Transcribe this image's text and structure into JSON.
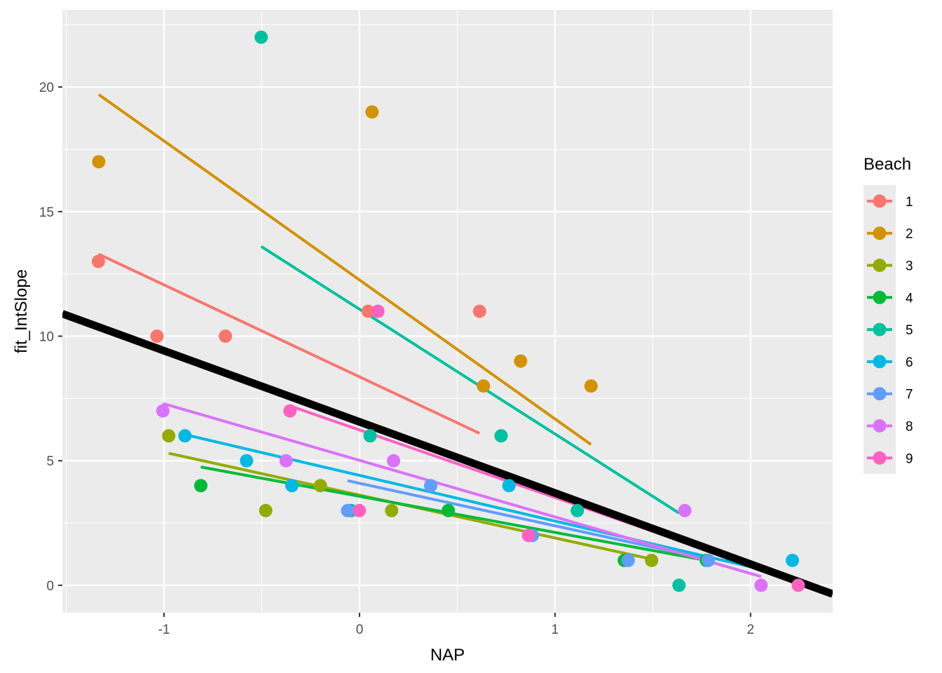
{
  "chart_data": {
    "type": "scatter",
    "title": "",
    "xlabel": "NAP",
    "ylabel": "fit_IntSlope",
    "xlim": [
      -1.52,
      2.42
    ],
    "ylim": [
      -1.1,
      23.1
    ],
    "x_ticks": [
      -1,
      0,
      1,
      2
    ],
    "x_tick_labels": [
      "-1",
      "0",
      "1",
      "2"
    ],
    "y_ticks": [
      0,
      5,
      10,
      15,
      20
    ],
    "y_tick_labels": [
      "0",
      "5",
      "10",
      "15",
      "20"
    ],
    "legend": {
      "title": "Beach",
      "placement": "right",
      "entries": [
        "1",
        "2",
        "3",
        "4",
        "5",
        "6",
        "7",
        "8",
        "9"
      ]
    },
    "overall_fit": {
      "name": "overall",
      "color": "#000000",
      "x": [
        -1.52,
        2.42
      ],
      "y": [
        10.9,
        -0.35
      ]
    },
    "series": [
      {
        "name": "1",
        "color": "#F8766D",
        "points": [
          [
            -1.336,
            13
          ],
          [
            -1.036,
            10
          ],
          [
            -0.686,
            10
          ],
          [
            0.044,
            11
          ],
          [
            0.614,
            11
          ]
        ],
        "fit": {
          "x": [
            -1.336,
            0.614
          ],
          "y": [
            13.3,
            6.1
          ]
        }
      },
      {
        "name": "2",
        "color": "#D39200",
        "points": [
          [
            -1.334,
            17
          ],
          [
            0.064,
            19
          ],
          [
            0.634,
            8
          ],
          [
            0.824,
            9
          ],
          [
            1.184,
            8
          ]
        ],
        "fit": {
          "x": [
            -1.334,
            1.184
          ],
          "y": [
            19.7,
            5.65
          ]
        }
      },
      {
        "name": "3",
        "color": "#93AA00",
        "points": [
          [
            -0.976,
            6
          ],
          [
            -0.48,
            3
          ],
          [
            -0.2,
            4
          ],
          [
            0.164,
            3
          ],
          [
            1.494,
            1
          ]
        ],
        "fit": {
          "x": [
            -0.976,
            1.494
          ],
          "y": [
            5.3,
            1.05
          ]
        }
      },
      {
        "name": "4",
        "color": "#00BA38",
        "points": [
          [
            -0.812,
            4
          ],
          [
            0.454,
            3
          ],
          [
            1.354,
            1
          ],
          [
            1.774,
            1
          ]
        ],
        "fit": {
          "x": [
            -0.812,
            1.774
          ],
          "y": [
            4.75,
            1.0
          ]
        }
      },
      {
        "name": "5",
        "color": "#00C19F",
        "points": [
          [
            -0.503,
            22
          ],
          [
            -0.043,
            3
          ],
          [
            0.054,
            6
          ],
          [
            0.724,
            6
          ],
          [
            1.114,
            3
          ],
          [
            1.634,
            0
          ]
        ],
        "fit": {
          "x": [
            -0.503,
            1.634
          ],
          "y": [
            13.6,
            2.9
          ]
        }
      },
      {
        "name": "6",
        "color": "#00B9E3",
        "points": [
          [
            -0.893,
            6
          ],
          [
            -0.578,
            5
          ],
          [
            -0.346,
            4
          ],
          [
            0.764,
            4
          ],
          [
            2.214,
            1
          ]
        ],
        "fit": {
          "x": [
            -0.893,
            2.214
          ],
          "y": [
            6.05,
            0.35
          ]
        }
      },
      {
        "name": "7",
        "color": "#619CFF",
        "points": [
          [
            -0.061,
            3
          ],
          [
            0.364,
            4
          ],
          [
            0.884,
            2
          ],
          [
            1.374,
            1
          ],
          [
            1.784,
            1
          ]
        ],
        "fit": {
          "x": [
            -0.061,
            1.784
          ],
          "y": [
            4.2,
            1.05
          ]
        }
      },
      {
        "name": "8",
        "color": "#DB72FB",
        "points": [
          [
            -1.006,
            7
          ],
          [
            -0.376,
            5
          ],
          [
            0.174,
            5
          ],
          [
            1.664,
            3
          ],
          [
            2.054,
            0
          ]
        ],
        "fit": {
          "x": [
            -1.006,
            2.054
          ],
          "y": [
            7.3,
            0.35
          ]
        }
      },
      {
        "name": "9",
        "color": "#FF61C3",
        "points": [
          [
            -0.356,
            7
          ],
          [
            -0.001,
            3
          ],
          [
            0.094,
            11
          ],
          [
            0.864,
            2
          ],
          [
            2.244,
            0
          ]
        ],
        "fit": {
          "x": [
            -0.356,
            2.244
          ],
          "y": [
            7.2,
            0.15
          ]
        }
      }
    ]
  }
}
